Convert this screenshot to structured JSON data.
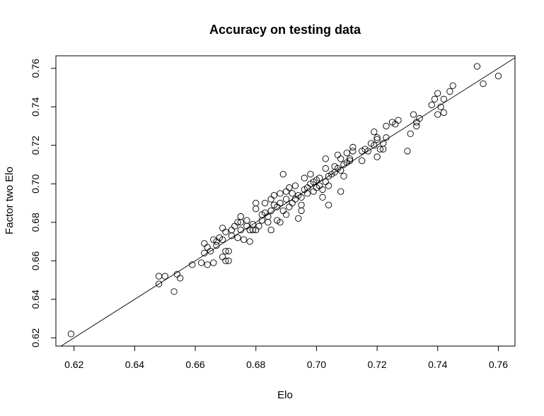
{
  "chart_data": {
    "type": "scatter",
    "title": "Accuracy on testing data",
    "xlabel": "Elo",
    "ylabel": "Factor two Elo",
    "xlim": [
      0.614,
      0.7655
    ],
    "ylim": [
      0.6157,
      0.7665
    ],
    "x_ticks": [
      "0.62",
      "0.64",
      "0.66",
      "0.68",
      "0.70",
      "0.72",
      "0.74",
      "0.76"
    ],
    "y_ticks": [
      "0.62",
      "0.64",
      "0.66",
      "0.68",
      "0.70",
      "0.72",
      "0.74",
      "0.76"
    ],
    "reference_line": {
      "type": "identity",
      "intercept": 0,
      "slope": 1
    },
    "grid": false,
    "marker": "open-circle",
    "points": [
      [
        0.619,
        0.622
      ],
      [
        0.648,
        0.648
      ],
      [
        0.648,
        0.652
      ],
      [
        0.65,
        0.652
      ],
      [
        0.653,
        0.644
      ],
      [
        0.654,
        0.653
      ],
      [
        0.655,
        0.651
      ],
      [
        0.659,
        0.658
      ],
      [
        0.662,
        0.659
      ],
      [
        0.663,
        0.664
      ],
      [
        0.663,
        0.669
      ],
      [
        0.664,
        0.658
      ],
      [
        0.664,
        0.667
      ],
      [
        0.665,
        0.665
      ],
      [
        0.666,
        0.659
      ],
      [
        0.666,
        0.671
      ],
      [
        0.667,
        0.668
      ],
      [
        0.667,
        0.67
      ],
      [
        0.668,
        0.672
      ],
      [
        0.669,
        0.677
      ],
      [
        0.669,
        0.662
      ],
      [
        0.669,
        0.671
      ],
      [
        0.67,
        0.66
      ],
      [
        0.67,
        0.665
      ],
      [
        0.67,
        0.675
      ],
      [
        0.671,
        0.66
      ],
      [
        0.671,
        0.665
      ],
      [
        0.672,
        0.673
      ],
      [
        0.672,
        0.676
      ],
      [
        0.673,
        0.678
      ],
      [
        0.674,
        0.68
      ],
      [
        0.674,
        0.672
      ],
      [
        0.675,
        0.683
      ],
      [
        0.675,
        0.676
      ],
      [
        0.675,
        0.68
      ],
      [
        0.676,
        0.671
      ],
      [
        0.677,
        0.678
      ],
      [
        0.677,
        0.681
      ],
      [
        0.678,
        0.676
      ],
      [
        0.678,
        0.67
      ],
      [
        0.679,
        0.676
      ],
      [
        0.679,
        0.679
      ],
      [
        0.68,
        0.676
      ],
      [
        0.68,
        0.687
      ],
      [
        0.68,
        0.69
      ],
      [
        0.681,
        0.678
      ],
      [
        0.682,
        0.684
      ],
      [
        0.682,
        0.681
      ],
      [
        0.683,
        0.685
      ],
      [
        0.683,
        0.69
      ],
      [
        0.684,
        0.68
      ],
      [
        0.684,
        0.683
      ],
      [
        0.685,
        0.676
      ],
      [
        0.685,
        0.686
      ],
      [
        0.685,
        0.692
      ],
      [
        0.686,
        0.689
      ],
      [
        0.686,
        0.694
      ],
      [
        0.687,
        0.681
      ],
      [
        0.687,
        0.688
      ],
      [
        0.688,
        0.68
      ],
      [
        0.688,
        0.695
      ],
      [
        0.688,
        0.69
      ],
      [
        0.689,
        0.705
      ],
      [
        0.689,
        0.686
      ],
      [
        0.69,
        0.696
      ],
      [
        0.69,
        0.684
      ],
      [
        0.69,
        0.692
      ],
      [
        0.691,
        0.698
      ],
      [
        0.691,
        0.688
      ],
      [
        0.692,
        0.69
      ],
      [
        0.692,
        0.695
      ],
      [
        0.693,
        0.692
      ],
      [
        0.693,
        0.699
      ],
      [
        0.694,
        0.694
      ],
      [
        0.694,
        0.682
      ],
      [
        0.695,
        0.686
      ],
      [
        0.695,
        0.689
      ],
      [
        0.695,
        0.693
      ],
      [
        0.696,
        0.697
      ],
      [
        0.696,
        0.703
      ],
      [
        0.697,
        0.695
      ],
      [
        0.697,
        0.698
      ],
      [
        0.698,
        0.7
      ],
      [
        0.698,
        0.705
      ],
      [
        0.699,
        0.696
      ],
      [
        0.699,
        0.701
      ],
      [
        0.7,
        0.702
      ],
      [
        0.7,
        0.698
      ],
      [
        0.701,
        0.703
      ],
      [
        0.701,
        0.699
      ],
      [
        0.702,
        0.697
      ],
      [
        0.702,
        0.693
      ],
      [
        0.703,
        0.708
      ],
      [
        0.703,
        0.701
      ],
      [
        0.703,
        0.713
      ],
      [
        0.704,
        0.689
      ],
      [
        0.704,
        0.699
      ],
      [
        0.704,
        0.704
      ],
      [
        0.705,
        0.705
      ],
      [
        0.706,
        0.706
      ],
      [
        0.706,
        0.709
      ],
      [
        0.707,
        0.715
      ],
      [
        0.707,
        0.708
      ],
      [
        0.708,
        0.696
      ],
      [
        0.708,
        0.713
      ],
      [
        0.708,
        0.707
      ],
      [
        0.709,
        0.71
      ],
      [
        0.709,
        0.704
      ],
      [
        0.71,
        0.711
      ],
      [
        0.71,
        0.716
      ],
      [
        0.711,
        0.712
      ],
      [
        0.711,
        0.713
      ],
      [
        0.712,
        0.719
      ],
      [
        0.712,
        0.717
      ],
      [
        0.715,
        0.717
      ],
      [
        0.715,
        0.712
      ],
      [
        0.716,
        0.718
      ],
      [
        0.717,
        0.717
      ],
      [
        0.718,
        0.721
      ],
      [
        0.719,
        0.727
      ],
      [
        0.719,
        0.72
      ],
      [
        0.72,
        0.714
      ],
      [
        0.72,
        0.723
      ],
      [
        0.72,
        0.724
      ],
      [
        0.721,
        0.718
      ],
      [
        0.722,
        0.718
      ],
      [
        0.722,
        0.721
      ],
      [
        0.723,
        0.73
      ],
      [
        0.723,
        0.724
      ],
      [
        0.725,
        0.732
      ],
      [
        0.726,
        0.731
      ],
      [
        0.727,
        0.733
      ],
      [
        0.73,
        0.717
      ],
      [
        0.731,
        0.726
      ],
      [
        0.732,
        0.736
      ],
      [
        0.733,
        0.732
      ],
      [
        0.733,
        0.73
      ],
      [
        0.734,
        0.734
      ],
      [
        0.738,
        0.741
      ],
      [
        0.739,
        0.744
      ],
      [
        0.74,
        0.747
      ],
      [
        0.74,
        0.736
      ],
      [
        0.741,
        0.74
      ],
      [
        0.742,
        0.737
      ],
      [
        0.742,
        0.744
      ],
      [
        0.744,
        0.748
      ],
      [
        0.745,
        0.751
      ],
      [
        0.753,
        0.761
      ],
      [
        0.755,
        0.752
      ],
      [
        0.76,
        0.756
      ]
    ]
  }
}
